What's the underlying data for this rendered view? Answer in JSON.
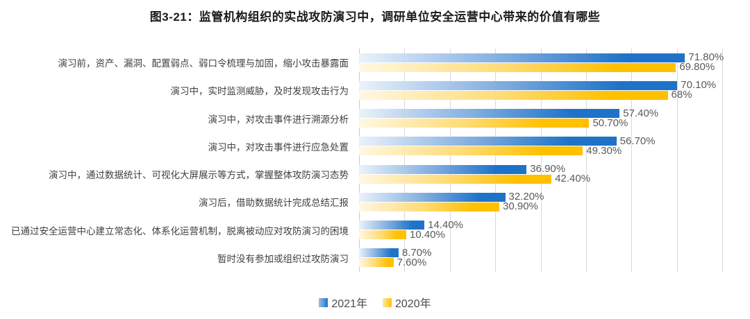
{
  "title": "图3-21：监管机构组织的实战攻防演习中，调研单位安全运营中心带来的价值有哪些",
  "legend": [
    {
      "label": "2021年",
      "color": "#1e73c8"
    },
    {
      "label": "2020年",
      "color": "#ffc000"
    }
  ],
  "colors": {
    "blue_dark": "#1e73c8",
    "blue_light": "#eaf2fb",
    "yellow_dark": "#ffc000",
    "yellow_light": "#fff8e3",
    "gridline": "#d9d9d9",
    "axis": "#c9c9c9",
    "title_text": "#1a1a1a",
    "category_text": "#3f3f3f",
    "value_text": "#595959"
  },
  "chart_data": {
    "type": "bar",
    "orientation": "horizontal",
    "title": "图3-21：监管机构组织的实战攻防演习中，调研单位安全运营中心带来的价值有哪些",
    "categories": [
      "演习前，资产、漏洞、配置弱点、弱口令梳理与加固，缩小攻击暴露面",
      "演习中，实时监测威胁，及时发现攻击行为",
      "演习中，对攻击事件进行溯源分析",
      "演习中，对攻击事件进行应急处置",
      "演习中，通过数据统计、可视化大屏展示等方式，掌握整体攻防演习态势",
      "演习后，借助数据统计完成总结汇报",
      "已通过安全运营中心建立常态化、体系化运营机制，脱离被动应对攻防演习的困境",
      "暂时没有参加或组织过攻防演习"
    ],
    "series": [
      {
        "name": "2021年",
        "values": [
          71.8,
          70.1,
          57.4,
          56.7,
          36.9,
          32.2,
          14.4,
          8.7
        ],
        "labels": [
          "71.80%",
          "70.10%",
          "57.40%",
          "56.70%",
          "36.90%",
          "32.20%",
          "14.40%",
          "8.70%"
        ]
      },
      {
        "name": "2020年",
        "values": [
          69.8,
          68,
          50.7,
          49.3,
          42.4,
          30.9,
          10.4,
          7.6
        ],
        "labels": [
          "69.80%",
          "68%",
          "50.70%",
          "49.30%",
          "42.40%",
          "30.90%",
          "10.40%",
          "7.60%"
        ]
      }
    ],
    "xlim": [
      0,
      80
    ],
    "gridline_interval": 10,
    "grid": true,
    "x_tick_labels_visible": false,
    "legend_position": "bottom",
    "data_labels": true
  }
}
